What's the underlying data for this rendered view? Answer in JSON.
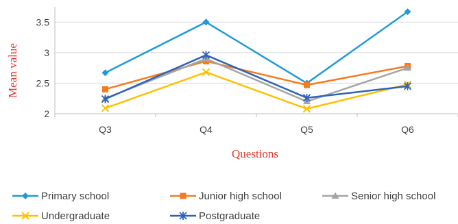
{
  "chart_data": {
    "type": "line",
    "title": "",
    "xlabel": "Questions",
    "ylabel": "Mean value",
    "categories": [
      "Q3",
      "Q4",
      "Q5",
      "Q6"
    ],
    "ylim": [
      2,
      3.75
    ],
    "yticks": [
      2,
      2.5,
      3,
      3.5
    ],
    "ytick_labels": [
      "2",
      "2.5",
      "3",
      "3.5"
    ],
    "grid": "horizontal",
    "legend_position": "bottom",
    "series": [
      {
        "name": "Primary school",
        "values": [
          2.67,
          3.5,
          2.5,
          3.67
        ],
        "color": "#1f9bd7",
        "marker": "diamond"
      },
      {
        "name": "Junior high school",
        "values": [
          2.4,
          2.86,
          2.47,
          2.78
        ],
        "color": "#f47b20",
        "marker": "square"
      },
      {
        "name": "Senior high school",
        "values": [
          2.25,
          2.9,
          2.2,
          2.75
        ],
        "color": "#a5a5a5",
        "marker": "triangle"
      },
      {
        "name": "Undergraduate",
        "values": [
          2.09,
          2.68,
          2.08,
          2.48
        ],
        "color": "#ffc000",
        "marker": "x"
      },
      {
        "name": "Postgraduate",
        "values": [
          2.24,
          2.96,
          2.26,
          2.45
        ],
        "color": "#2e64b8",
        "marker": "star"
      }
    ]
  }
}
